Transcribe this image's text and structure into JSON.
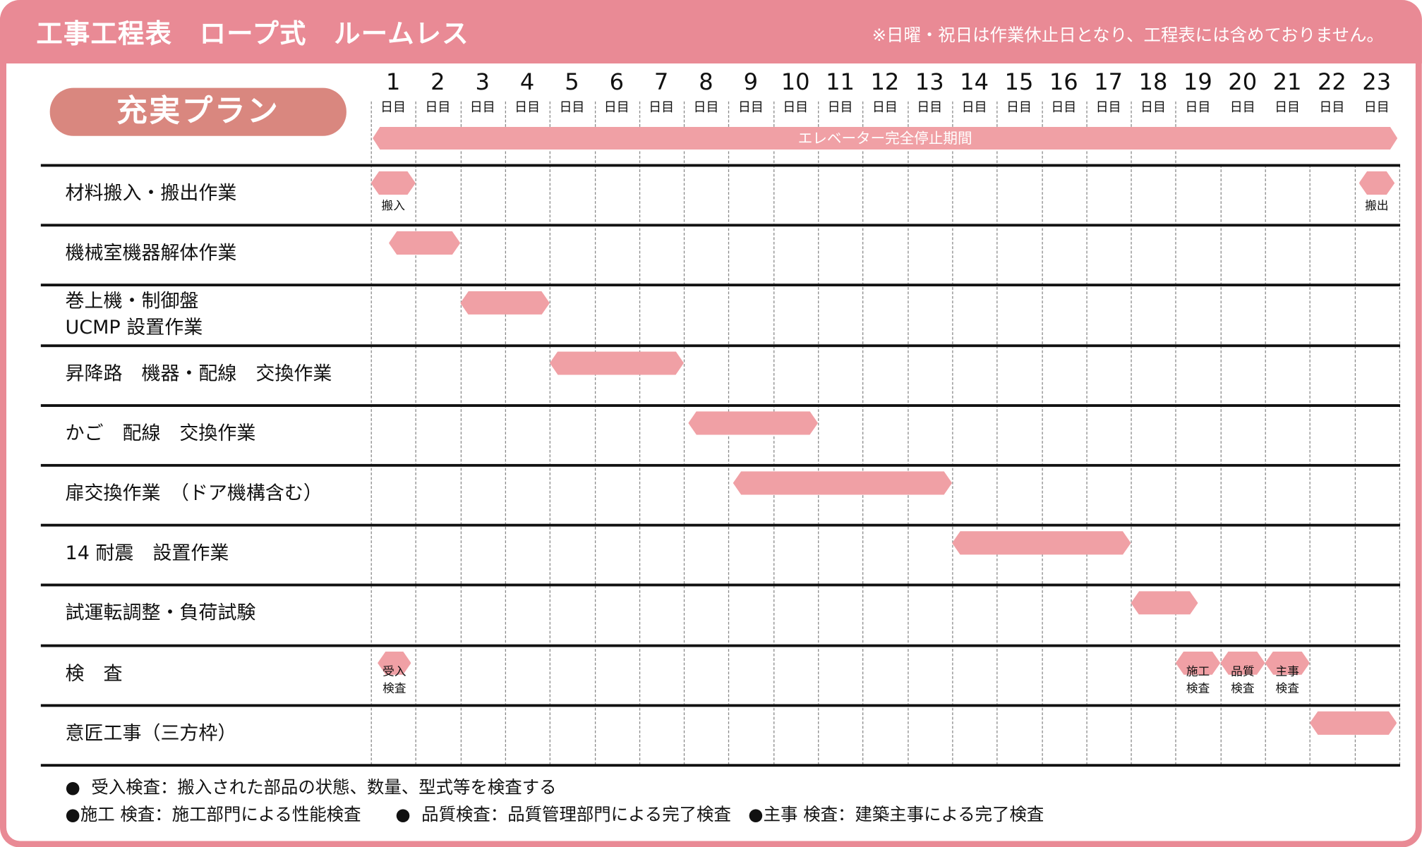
{
  "header": {
    "title": "工事工程表　ロープ式　ルームレス",
    "note": "※日曜・祝日は作業休止日となり、工程表には含めておりません。"
  },
  "plan_label": "充実プラン",
  "days": [
    "1",
    "2",
    "3",
    "4",
    "5",
    "6",
    "7",
    "8",
    "9",
    "10",
    "11",
    "12",
    "13",
    "14",
    "15",
    "16",
    "17",
    "18",
    "19",
    "20",
    "21",
    "22",
    "23"
  ],
  "day_unit": "日目",
  "period_label": "エレベーター完全停止期間",
  "colors": {
    "header": "#e98a95",
    "plan": "#d9877f",
    "bar": "#f0a0a5"
  },
  "rows": [
    {
      "label": "材料搬入・搬出作業",
      "bars": [
        {
          "start": 0,
          "end": 1,
          "label": "搬入"
        },
        {
          "start": 22.1,
          "end": 22.9,
          "label": "搬出"
        }
      ]
    },
    {
      "label": "機械室機器解体作業",
      "bars": [
        {
          "start": 0.4,
          "end": 2.0
        }
      ]
    },
    {
      "label": "巻上機・制御盤\nUCMP 設置作業",
      "bars": [
        {
          "start": 2.0,
          "end": 4.0
        }
      ]
    },
    {
      "label": "昇降路　機器・配線　交換作業",
      "bars": [
        {
          "start": 4.0,
          "end": 7.0
        }
      ]
    },
    {
      "label": "かご　配線　交換作業",
      "bars": [
        {
          "start": 7.1,
          "end": 10.0
        }
      ]
    },
    {
      "label": "扉交換作業　（ドア機構含む）",
      "bars": [
        {
          "start": 8.1,
          "end": 13.0
        }
      ]
    },
    {
      "label": "14 耐震　設置作業",
      "bars": [
        {
          "start": 13.0,
          "end": 17.0
        }
      ]
    },
    {
      "label": "試運転調整・負荷試験",
      "bars": [
        {
          "start": 17.0,
          "end": 18.5
        }
      ]
    },
    {
      "label": "検　査",
      "bars": [
        {
          "start": 0.15,
          "end": 0.9,
          "label": "受入\n検査"
        },
        {
          "start": 18.0,
          "end": 19.0,
          "label": "施工\n検査"
        },
        {
          "start": 19.0,
          "end": 20.0,
          "label": "品質\n検査"
        },
        {
          "start": 20.0,
          "end": 21.0,
          "label": "主事\n検査"
        }
      ]
    },
    {
      "label": "意匠工事（三方枠）",
      "bars": [
        {
          "start": 21.0,
          "end": 22.95
        }
      ]
    }
  ],
  "footnotes": [
    "●  受入検査：搬入された部品の状態、数量、型式等を検査する",
    "●施工 検査：施工部門による性能検査　　●  品質検査：品質管理部門による完了検査　●主事 検査：建築主事による完了検査"
  ]
}
